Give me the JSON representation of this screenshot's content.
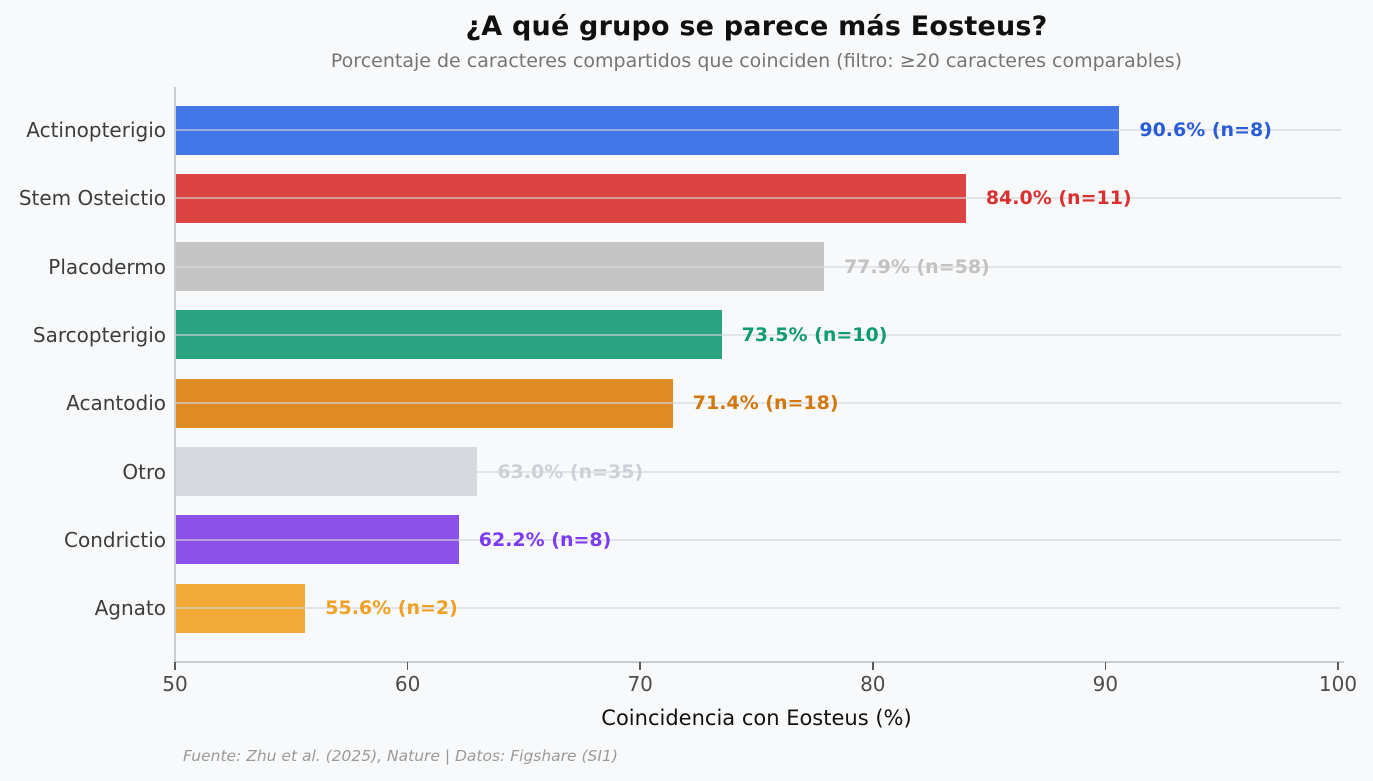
{
  "chart_data": {
    "type": "bar",
    "orientation": "horizontal",
    "title": "¿A qué grupo se parece más Eosteus?",
    "subtitle": "Porcentaje de caracteres compartidos que coinciden (filtro: ≥20 caracteres comparables)",
    "xlabel": "Coincidencia con Eosteus (%)",
    "source": "Fuente: Zhu et al. (2025), Nature | Datos: Figshare (SI1)",
    "xlim": [
      50,
      100
    ],
    "xticks": [
      50,
      60,
      70,
      80,
      90,
      100
    ],
    "grid": "horizontal lines at each category row, drawn over bars",
    "legend": "none",
    "categories": [
      "Actinopterigio",
      "Stem Osteictio",
      "Placodermo",
      "Sarcopterigio",
      "Acantodio",
      "Otro",
      "Condrictio",
      "Agnato"
    ],
    "values": [
      90.6,
      84.0,
      77.9,
      73.5,
      71.4,
      63.0,
      62.2,
      55.6
    ],
    "bars": [
      {
        "label": "Actinopterigio",
        "value": 90.6,
        "n": 8,
        "annotation": "90.6% (n=8)",
        "bar_color": "#4377e8",
        "label_color": "#2a5cd8"
      },
      {
        "label": "Stem Osteictio",
        "value": 84.0,
        "n": 11,
        "annotation": "84.0% (n=11)",
        "bar_color": "#dc4343",
        "label_color": "#d93030"
      },
      {
        "label": "Placodermo",
        "value": 77.9,
        "n": 58,
        "annotation": "77.9% (n=58)",
        "bar_color": "#c5c5c5",
        "label_color": "#c2c2c2"
      },
      {
        "label": "Sarcopterigio",
        "value": 73.5,
        "n": 10,
        "annotation": "73.5% (n=10)",
        "bar_color": "#2aa480",
        "label_color": "#0f9c72"
      },
      {
        "label": "Acantodio",
        "value": 71.4,
        "n": 18,
        "annotation": "71.4% (n=18)",
        "bar_color": "#df8c27",
        "label_color": "#d2790e"
      },
      {
        "label": "Otro",
        "value": 63.0,
        "n": 35,
        "annotation": "63.0% (n=35)",
        "bar_color": "#d6d9de",
        "label_color": "#ccd1d8"
      },
      {
        "label": "Condrictio",
        "value": 62.2,
        "n": 8,
        "annotation": "62.2% (n=8)",
        "bar_color": "#8b51e8",
        "label_color": "#7c3bf2"
      },
      {
        "label": "Agnato",
        "value": 55.6,
        "n": 2,
        "annotation": "55.6% (n=2)",
        "bar_color": "#f1aa37",
        "label_color": "#f0a125"
      }
    ],
    "colors": {
      "background": "#f8f9fa",
      "title_text": "#101010",
      "subtitle_text": "#757575",
      "axis_line": "#c9cbce",
      "tick_text": "#4c4c4c",
      "category_text": "#3d3d3d"
    }
  }
}
